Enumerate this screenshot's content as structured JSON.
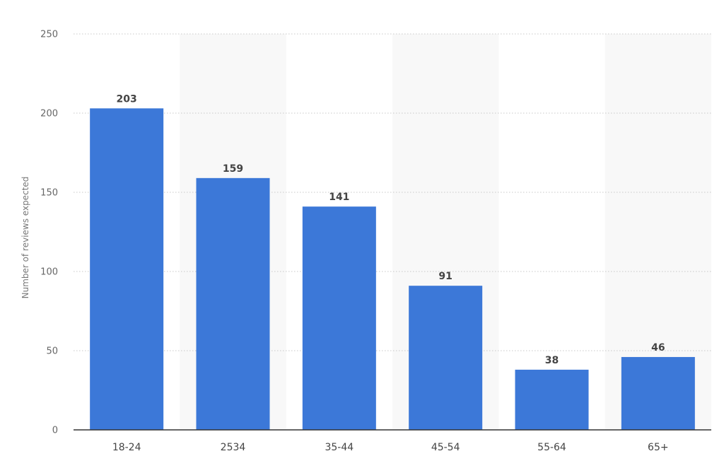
{
  "chart_data": {
    "type": "bar",
    "categories": [
      "18-24",
      "2534",
      "35-44",
      "45-54",
      "55-64",
      "65+"
    ],
    "values": [
      203,
      159,
      141,
      91,
      38,
      46
    ],
    "ylabel": "Number of reviews expected",
    "xlabel": "",
    "ylim": [
      0,
      250
    ],
    "yticks": [
      0,
      50,
      100,
      150,
      200,
      250
    ],
    "grid": true,
    "bar_color": "#3c78d8",
    "data_labels": true
  }
}
